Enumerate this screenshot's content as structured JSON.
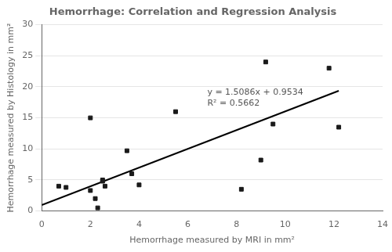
{
  "chart_data": {
    "type": "scatter",
    "title": "Hemorrhage: Correlation and Regression Analysis",
    "xlabel": "Hemorrhage measured by MRI in mm²",
    "ylabel": "Hemorrhage measured by Histology in mm²",
    "series": [
      {
        "type": "scatter",
        "marker": "square",
        "color": "#1a1a1a",
        "x": [
          0.7,
          1.0,
          2.0,
          2.0,
          2.2,
          2.3,
          2.5,
          2.5,
          2.6,
          3.5,
          3.7,
          4.0,
          5.5,
          8.2,
          9.0,
          9.2,
          9.5,
          11.8,
          12.2
        ],
        "values": [
          4.0,
          3.8,
          15.0,
          3.3,
          2.0,
          0.5,
          5.0,
          4.8,
          4.0,
          9.7,
          6.0,
          4.2,
          16.0,
          3.5,
          8.2,
          24.0,
          14.0,
          23.0,
          13.5
        ]
      },
      {
        "type": "line",
        "color": "#000000",
        "x": [
          0.0,
          12.2
        ],
        "values": [
          0.9534,
          19.35832
        ]
      }
    ],
    "annotations": [
      {
        "text": [
          "y = 1.5086x + 0.9534",
          "R² = 0.5662"
        ],
        "x": 6.8,
        "y": 19.8,
        "color": "#555555"
      }
    ],
    "xlim": [
      0,
      14
    ],
    "ylim": [
      0,
      30
    ],
    "xticks": [
      0,
      2,
      4,
      6,
      8,
      10,
      12,
      14
    ],
    "yticks": [
      0,
      5,
      10,
      15,
      20,
      25,
      30
    ],
    "grid": "y"
  }
}
